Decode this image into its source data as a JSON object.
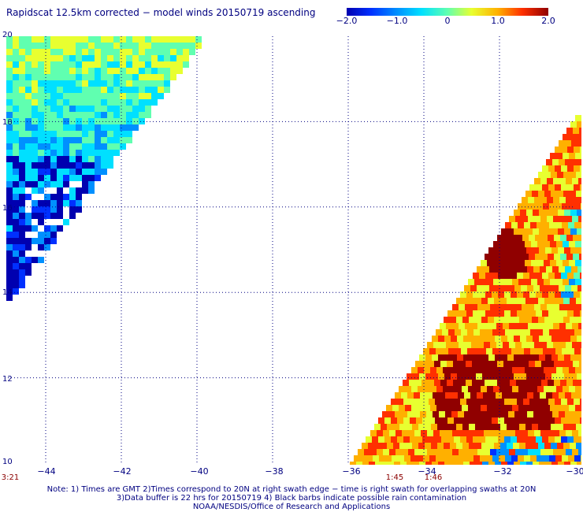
{
  "title": "Rapidscat 12.5km corrected − model winds 20150719 ascending",
  "colorbar": {
    "ticks": [
      {
        "label": "−2.0",
        "value": -2.0
      },
      {
        "label": "−1.0",
        "value": -1.0
      },
      {
        "label": "0",
        "value": 0
      },
      {
        "label": "1.0",
        "value": 1.0
      },
      {
        "label": "2.0",
        "value": 2.0
      }
    ],
    "colors": [
      "#0000b0",
      "#0030ff",
      "#0090ff",
      "#00e0ff",
      "#60ffb0",
      "#e8ff30",
      "#ffb000",
      "#ff3000",
      "#900000"
    ]
  },
  "map": {
    "lon_range": [
      -45,
      -30
    ],
    "lat_range": [
      10,
      20
    ],
    "lat_labels": [
      "20",
      "18",
      "16",
      "14",
      "12",
      "10"
    ],
    "lon_labels": [
      "−44",
      "−42",
      "−40",
      "−38",
      "−36",
      "−34",
      "−32",
      "−30"
    ],
    "gridline_style": "dotted"
  },
  "times": [
    {
      "label": "3:21",
      "lon": -45.1
    },
    {
      "label": "1:45",
      "lon": -35.0
    },
    {
      "label": "1:46",
      "lon": -34.0
    }
  ],
  "notes": [
    "Note: 1) Times are GMT 2)Times correspond to 20N at right swath edge − time is right swath for overlapping swaths at 20N",
    "3)Data buffer is 22 hrs for 20150719 4) Black barbs indicate possible rain contamination",
    "NOAA/NESDIS/Office of Research and Applications"
  ]
}
